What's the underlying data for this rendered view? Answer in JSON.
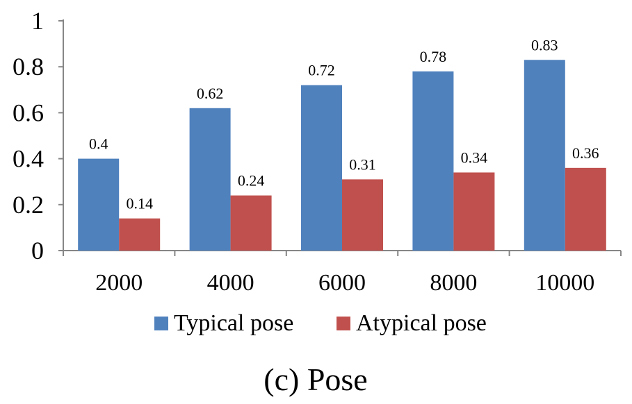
{
  "chart_data": {
    "type": "bar",
    "categories": [
      "2000",
      "4000",
      "6000",
      "8000",
      "10000"
    ],
    "series": [
      {
        "name": "Typical pose",
        "values": [
          0.4,
          0.62,
          0.72,
          0.78,
          0.83
        ],
        "labels": [
          "0.4",
          "0.62",
          "0.72",
          "0.78",
          "0.83"
        ],
        "color": "#4f81bd"
      },
      {
        "name": "Atypical pose",
        "values": [
          0.14,
          0.24,
          0.31,
          0.34,
          0.36
        ],
        "labels": [
          "0.14",
          "0.24",
          "0.31",
          "0.34",
          "0.36"
        ],
        "color": "#c0504d"
      }
    ],
    "yticks": [
      0,
      0.2,
      0.4,
      0.6,
      0.8,
      1
    ],
    "ytick_labels": [
      "0",
      "0.2",
      "0.4",
      "0.6",
      "0.8",
      "1"
    ],
    "ylim": [
      0,
      1
    ],
    "grid": false,
    "legend": "bottom",
    "title": "",
    "xlabel": "",
    "ylabel": ""
  },
  "caption": "(c) Pose"
}
